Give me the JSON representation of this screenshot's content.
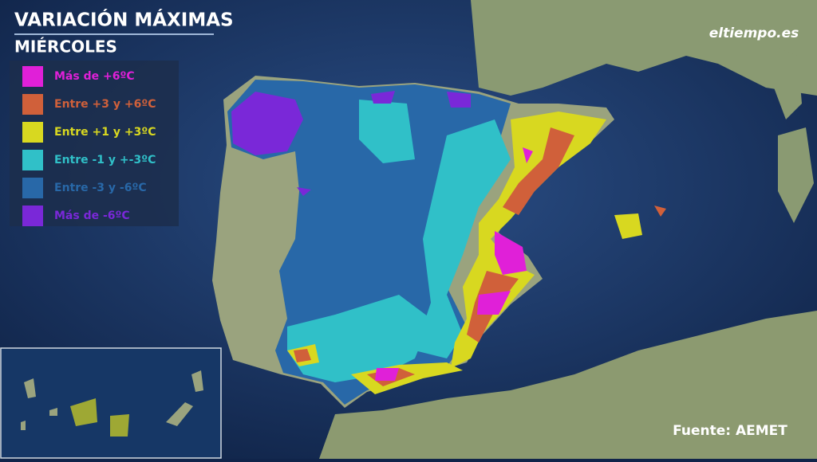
{
  "header": {
    "title": "VARIACIÓN MÁXIMAS",
    "subtitle": "MIÉRCOLES"
  },
  "legend": {
    "items": [
      {
        "label": "Más de +6ºC",
        "color": "#e020d8"
      },
      {
        "label": "Entre +3 y +6ºC",
        "color": "#d0603a"
      },
      {
        "label": "Entre +1 y +3ºC",
        "color": "#d8d820"
      },
      {
        "label": "Entre -1 y +-3ºC",
        "color": "#30c0c8"
      },
      {
        "label": "Entre -3 y -6ºC",
        "color": "#2868a8"
      },
      {
        "label": "Más de -6ºC",
        "color": "#7a28d8"
      }
    ]
  },
  "logo": "eltiempo.es",
  "source": "Fuente: AEMET"
}
